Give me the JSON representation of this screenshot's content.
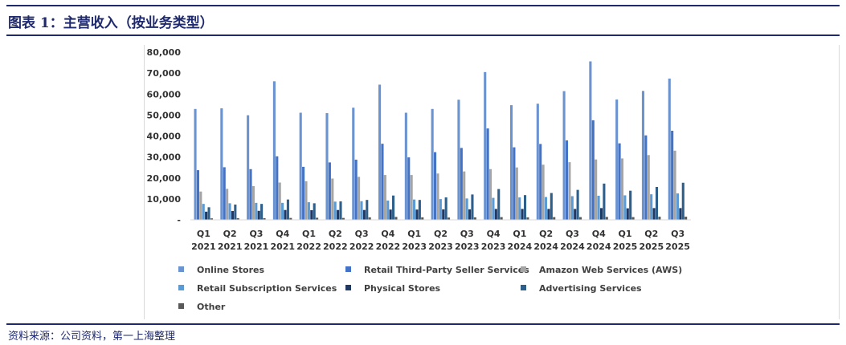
{
  "header": {
    "title": "图表 1：主营收入（按业务类型）"
  },
  "footer": {
    "source": "资料来源：公司资料，第一上海整理"
  },
  "chart_data": {
    "type": "bar",
    "title": "",
    "xlabel": "",
    "ylabel": "",
    "ylim": [
      0,
      80000
    ],
    "yticks": [
      0,
      10000,
      20000,
      30000,
      40000,
      50000,
      60000,
      70000,
      80000
    ],
    "ytick_labels": [
      "-",
      "10,000",
      "20,000",
      "30,000",
      "40,000",
      "50,000",
      "60,000",
      "70,000",
      "80,000"
    ],
    "categories": [
      [
        "Q1",
        "2021"
      ],
      [
        "Q2",
        "2021"
      ],
      [
        "Q3",
        "2021"
      ],
      [
        "Q4",
        "2021"
      ],
      [
        "Q1",
        "2022"
      ],
      [
        "Q2",
        "2022"
      ],
      [
        "Q3",
        "2022"
      ],
      [
        "Q4",
        "2022"
      ],
      [
        "Q1",
        "2023"
      ],
      [
        "Q2",
        "2023"
      ],
      [
        "Q3",
        "2023"
      ],
      [
        "Q4",
        "2023"
      ],
      [
        "Q1",
        "2024"
      ],
      [
        "Q2",
        "2024"
      ],
      [
        "Q3",
        "2024"
      ],
      [
        "Q4",
        "2024"
      ],
      [
        "Q1",
        "2025"
      ],
      [
        "Q2",
        "2025"
      ],
      [
        "Q3",
        "2025"
      ]
    ],
    "series": [
      {
        "name": "Online Stores",
        "color": "#6b93cf",
        "values": [
          52900,
          53200,
          49900,
          66100,
          51100,
          50900,
          53500,
          64500,
          51100,
          52900,
          57300,
          70500,
          54700,
          55400,
          61400,
          75600,
          57400,
          61500,
          67400
        ]
      },
      {
        "name": "Retail Third-Party Seller Services",
        "color": "#4472c4",
        "values": [
          23700,
          25100,
          24200,
          30300,
          25300,
          27400,
          28700,
          36300,
          29800,
          32300,
          34300,
          43600,
          34600,
          36200,
          37900,
          47500,
          36500,
          40300,
          42500
        ]
      },
      {
        "name": "Amazon Web Services (AWS)",
        "color": "#a5a5a5",
        "values": [
          13500,
          14800,
          16100,
          17800,
          18400,
          19700,
          20500,
          21400,
          21400,
          22100,
          23100,
          24200,
          25000,
          26300,
          27500,
          28800,
          29300,
          30900,
          33000
        ]
      },
      {
        "name": "Retail Subscription Services",
        "color": "#5b9bd5",
        "values": [
          7600,
          7900,
          8100,
          8100,
          8400,
          8700,
          8900,
          9200,
          9700,
          9900,
          10200,
          10500,
          10700,
          10900,
          11300,
          11500,
          11700,
          12200,
          12600
        ]
      },
      {
        "name": "Physical Stores",
        "color": "#1f3864",
        "values": [
          3900,
          4200,
          4300,
          4700,
          4600,
          4700,
          4700,
          4900,
          4900,
          5000,
          5000,
          5200,
          5200,
          5200,
          5200,
          5600,
          5500,
          5600,
          5600
        ]
      },
      {
        "name": "Advertising Services",
        "color": "#2e5f8a",
        "values": [
          6000,
          7300,
          7600,
          9700,
          7900,
          8800,
          9500,
          11600,
          9500,
          10700,
          12100,
          14700,
          11800,
          12800,
          14300,
          17300,
          13900,
          15700,
          17700
        ]
      },
      {
        "name": "Other",
        "color": "#595959",
        "values": [
          700,
          800,
          800,
          900,
          1000,
          900,
          1200,
          1400,
          1200,
          1100,
          1200,
          1300,
          1200,
          1300,
          1300,
          1400,
          1300,
          1500,
          1500
        ]
      }
    ],
    "legend": "bottom",
    "grid": false
  }
}
